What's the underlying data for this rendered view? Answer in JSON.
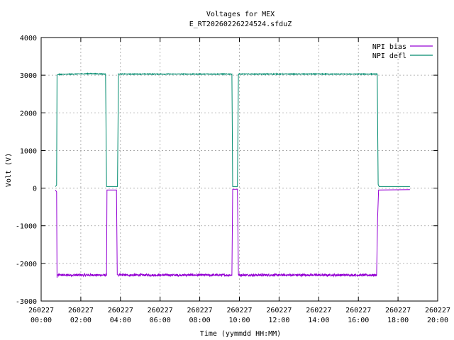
{
  "chart_data": {
    "type": "line",
    "title": "Voltages for MEX",
    "subtitle": "E_RT20260226224524.sfduZ",
    "xlabel": "Time (yymmdd HH:MM)",
    "ylabel": "Volt (V)",
    "grid": true,
    "legend_position": "top-right",
    "x_unit": "hour",
    "xlim": [
      0,
      20
    ],
    "ylim": [
      -3000,
      4000
    ],
    "x_ticks": [
      {
        "value": 0,
        "date": "260227",
        "time": "00:00"
      },
      {
        "value": 2,
        "date": "260227",
        "time": "02:00"
      },
      {
        "value": 4,
        "date": "260227",
        "time": "04:00"
      },
      {
        "value": 6,
        "date": "260227",
        "time": "06:00"
      },
      {
        "value": 8,
        "date": "260227",
        "time": "08:00"
      },
      {
        "value": 10,
        "date": "260227",
        "time": "10:00"
      },
      {
        "value": 12,
        "date": "260227",
        "time": "12:00"
      },
      {
        "value": 14,
        "date": "260227",
        "time": "14:00"
      },
      {
        "value": 16,
        "date": "260227",
        "time": "16:00"
      },
      {
        "value": 18,
        "date": "260227",
        "time": "18:00"
      },
      {
        "value": 20,
        "date": "260227",
        "time": "20:00"
      }
    ],
    "y_ticks": [
      -3000,
      -2000,
      -1000,
      0,
      1000,
      2000,
      3000,
      4000
    ],
    "series": [
      {
        "name": "NPI bias",
        "color": "#9400d3",
        "noise": 30,
        "x": [
          0.72,
          0.78,
          0.8,
          0.82,
          0.85,
          3.3,
          3.32,
          3.34,
          3.8,
          3.84,
          3.9,
          9.62,
          9.66,
          9.7,
          9.9,
          9.95,
          16.92,
          16.97,
          17.02,
          18.6
        ],
        "y": [
          -50,
          -100,
          -2380,
          -2300,
          -2310,
          -2310,
          -50,
          -50,
          -50,
          -2300,
          -2310,
          -2310,
          -30,
          -30,
          -30,
          -2310,
          -2310,
          -800,
          -50,
          -40
        ]
      },
      {
        "name": "NPI defl",
        "color": "#008b6e",
        "noise": 10,
        "x": [
          0.72,
          0.78,
          0.8,
          0.85,
          2.5,
          3.25,
          3.3,
          3.85,
          3.9,
          9.62,
          9.66,
          9.9,
          9.95,
          16.95,
          17.0,
          17.05,
          18.6
        ],
        "y": [
          40,
          80,
          3000,
          3020,
          3040,
          3030,
          40,
          40,
          3030,
          3030,
          40,
          40,
          3030,
          3030,
          100,
          40,
          40
        ]
      }
    ]
  }
}
